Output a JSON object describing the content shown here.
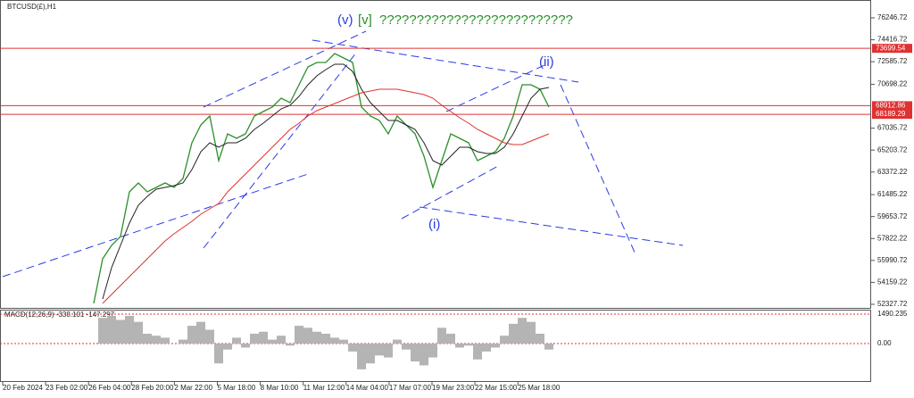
{
  "chart_data": [
    {
      "type": "line",
      "title": "BTCUSD(£),H1",
      "annotations": [
        "(v)",
        "[v]",
        "??????????????????????????",
        "(ii)",
        "(i)"
      ],
      "x_labels": [
        "20 Feb 2024",
        "23 Feb 02:00",
        "26 Feb 04:00",
        "28 Feb 20:00",
        "2 Mar 22:00",
        "5 Mar 18:00",
        "8 Mar 10:00",
        "11 Mar 12:00",
        "14 Mar 04:00",
        "17 Mar 07:00",
        "19 Mar 23:00",
        "22 Mar 15:00",
        "25 Mar 18:00"
      ],
      "ylim": [
        52030,
        77737
      ],
      "yticks": [
        76246.72,
        74416.72,
        72585.72,
        70698.22,
        67035.72,
        65203.72,
        63372.22,
        61485.22,
        59653.72,
        57822.22,
        55990.72,
        54159.22,
        52327.72
      ],
      "levels": [
        73699.54,
        68912.86,
        68189.29
      ],
      "level_color": "#e03030",
      "series": [
        {
          "color": "#2a8f2a",
          "values": [
            52404,
            56129,
            57247,
            57992,
            61717,
            62462,
            61717,
            62090,
            62462,
            62090,
            62835,
            65817,
            67306,
            68051,
            64325,
            66561,
            66188,
            66561,
            68051,
            68423,
            68796,
            69541,
            69168,
            70659,
            72147,
            72520,
            72520,
            73266,
            72893,
            72520,
            68796,
            68051,
            67678,
            66561,
            68051,
            67306,
            66561,
            64698,
            62090,
            64325,
            66561,
            66188,
            65817,
            64325,
            64698,
            65070,
            66188,
            68051,
            70659,
            70659,
            70286,
            68796
          ]
        },
        {
          "color": "#222222",
          "values": [
            null,
            52776,
            55384,
            57247,
            59110,
            60600,
            61345,
            61941,
            62090,
            62239,
            62462,
            63580,
            65070,
            65817,
            65443,
            65817,
            65817,
            66188,
            66932,
            67455,
            68051,
            68647,
            68945,
            69690,
            70659,
            71404,
            71925,
            72372,
            72372,
            71776,
            70286,
            69168,
            68423,
            67678,
            67678,
            67306,
            66932,
            65817,
            64325,
            63952,
            64698,
            65443,
            65443,
            65070,
            64921,
            64921,
            65443,
            66561,
            68051,
            69541,
            70286,
            70435
          ]
        },
        {
          "color": "#e03030",
          "values": [
            null,
            52404,
            53149,
            53894,
            54639,
            55384,
            56129,
            56874,
            57619,
            58215,
            58737,
            59259,
            59855,
            60302,
            60749,
            61717,
            62462,
            63208,
            63952,
            64698,
            65443,
            66188,
            66932,
            67455,
            68051,
            68498,
            68796,
            69095,
            69392,
            69690,
            69988,
            70137,
            70286,
            70286,
            70286,
            70137,
            69988,
            69839,
            69541,
            68945,
            68423,
            67902,
            67455,
            66932,
            66561,
            66188,
            65817,
            65667,
            65667,
            65965,
            66263,
            66561
          ]
        }
      ]
    },
    {
      "type": "bar",
      "title": "MACD(12,26,9) -338.101 -147.297",
      "color": "#b4b4b4",
      "ylim": [
        -1937,
        1671
      ],
      "yticks": [
        1490.235,
        {
          "value": 0,
          "label": "0.00"
        }
      ],
      "values": [
        0,
        1300,
        1400,
        1200,
        1400,
        1100,
        500,
        400,
        300,
        0,
        200,
        900,
        1100,
        700,
        -1000,
        -300,
        300,
        -200,
        500,
        600,
        200,
        400,
        -100,
        900,
        800,
        600,
        500,
        300,
        200,
        -400,
        -1300,
        -1000,
        -600,
        -700,
        200,
        -300,
        -900,
        -1100,
        -700,
        800,
        500,
        -200,
        -100,
        -800,
        -400,
        -200,
        400,
        1000,
        1300,
        1100,
        500,
        -300
      ]
    }
  ]
}
